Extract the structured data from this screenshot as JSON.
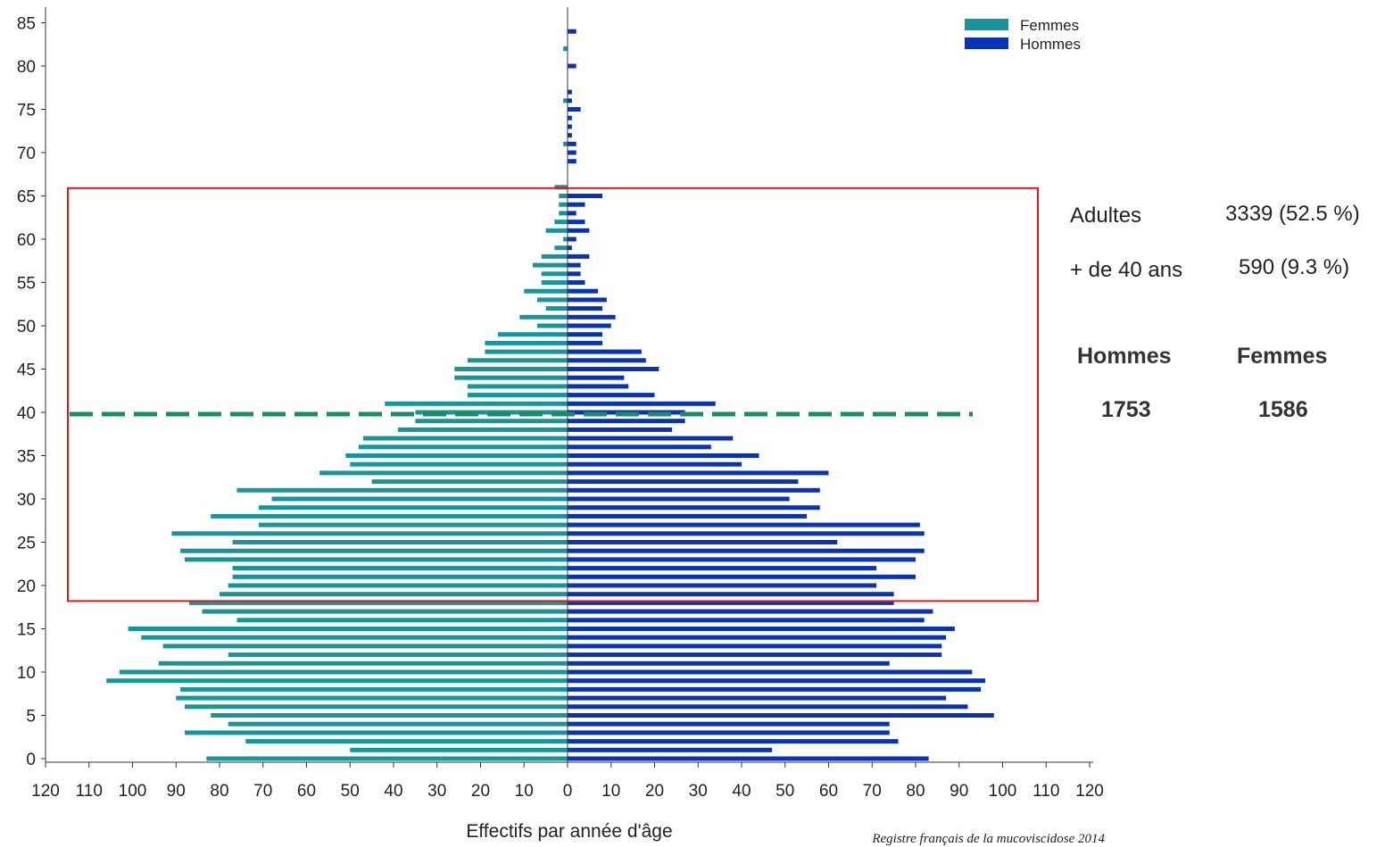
{
  "chart_data": {
    "type": "bar",
    "orientation": "horizontal-pyramid",
    "xlabel": "Effectifs par année d'âge",
    "xlim": [
      -120,
      120
    ],
    "x_ticks": [
      "120",
      "110",
      "100",
      "90",
      "80",
      "70",
      "60",
      "50",
      "40",
      "30",
      "20",
      "10",
      "0",
      "10",
      "20",
      "30",
      "40",
      "50",
      "60",
      "70",
      "80",
      "90",
      "100",
      "110",
      "120"
    ],
    "ylim": [
      0,
      85
    ],
    "y_ticks": [
      "0",
      "5",
      "10",
      "15",
      "20",
      "25",
      "30",
      "35",
      "40",
      "45",
      "50",
      "55",
      "60",
      "65",
      "70",
      "75",
      "80",
      "85"
    ],
    "legend_position": "top-right",
    "ages": [
      0,
      1,
      2,
      3,
      4,
      5,
      6,
      7,
      8,
      9,
      10,
      11,
      12,
      13,
      14,
      15,
      16,
      17,
      18,
      19,
      20,
      21,
      22,
      23,
      24,
      25,
      26,
      27,
      28,
      29,
      30,
      31,
      32,
      33,
      34,
      35,
      36,
      37,
      38,
      39,
      40,
      41,
      42,
      43,
      44,
      45,
      46,
      47,
      48,
      49,
      50,
      51,
      52,
      53,
      54,
      55,
      56,
      57,
      58,
      59,
      60,
      61,
      62,
      63,
      64,
      65,
      66,
      67,
      68,
      69,
      70,
      71,
      72,
      73,
      74,
      75,
      76,
      77,
      78,
      79,
      80,
      81,
      82,
      83,
      84,
      85
    ],
    "series": [
      {
        "name": "Femmes",
        "color": "#17959c",
        "values": [
          83,
          50,
          74,
          88,
          78,
          82,
          88,
          90,
          89,
          106,
          103,
          94,
          78,
          93,
          98,
          101,
          76,
          84,
          87,
          80,
          78,
          77,
          77,
          88,
          89,
          77,
          91,
          71,
          82,
          71,
          68,
          76,
          45,
          57,
          50,
          51,
          48,
          47,
          39,
          35,
          35,
          42,
          23,
          23,
          26,
          26,
          23,
          19,
          19,
          16,
          7,
          11,
          5,
          7,
          10,
          6,
          6,
          8,
          6,
          3,
          1,
          5,
          3,
          2,
          2,
          2,
          3,
          0,
          0,
          0,
          0,
          1,
          0,
          0,
          0,
          0,
          1,
          0,
          0,
          0,
          0,
          0,
          1,
          0,
          0,
          0
        ]
      },
      {
        "name": "Hommes",
        "color": "#0a32b4",
        "values": [
          83,
          47,
          76,
          74,
          74,
          98,
          92,
          87,
          95,
          96,
          93,
          74,
          86,
          86,
          87,
          89,
          82,
          84,
          75,
          75,
          71,
          80,
          71,
          80,
          82,
          62,
          82,
          81,
          55,
          58,
          51,
          58,
          53,
          60,
          40,
          44,
          33,
          38,
          24,
          27,
          27,
          34,
          20,
          14,
          13,
          21,
          18,
          17,
          8,
          8,
          10,
          11,
          8,
          9,
          7,
          4,
          3,
          3,
          5,
          1,
          2,
          5,
          4,
          2,
          4,
          8,
          0,
          0,
          0,
          2,
          2,
          2,
          1,
          1,
          1,
          3,
          1,
          1,
          0,
          0,
          2,
          0,
          0,
          0,
          2,
          0
        ]
      }
    ],
    "annotations": {
      "adult_box": {
        "age_from": 18,
        "age_to": 66
      },
      "age_40_line": {
        "age": 40
      }
    }
  },
  "stats": {
    "adultes_label": "Adultes",
    "adultes_value": "3339 (52.5 %)",
    "over40_label": "+ de 40 ans",
    "over40_value": "590 (9.3 %)",
    "hommes_head": "Hommes",
    "femmes_head": "Femmes",
    "hommes_count": "1753",
    "femmes_count": "1586"
  },
  "source": "Registre français de la mucoviscidose 2014"
}
